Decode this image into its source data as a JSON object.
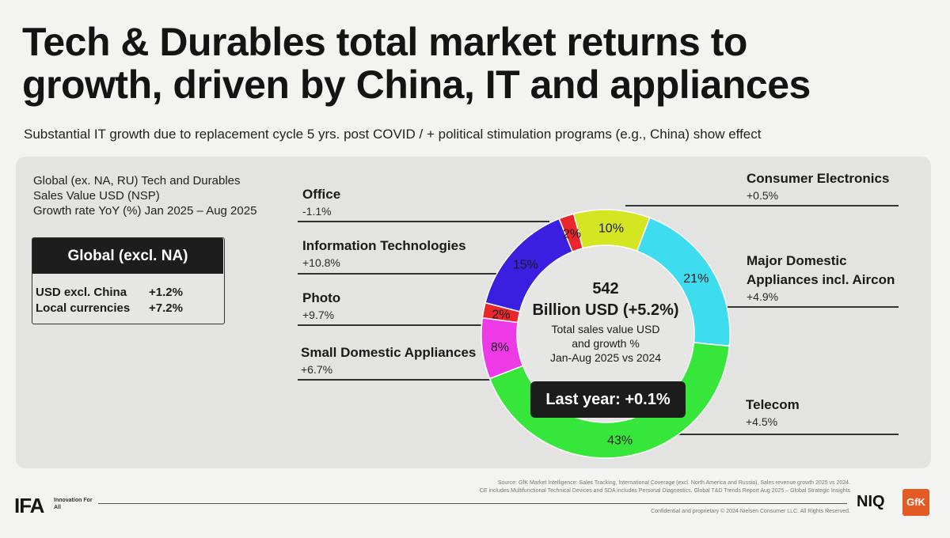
{
  "title_line1": "Tech & Durables total market returns to",
  "title_line2": "growth, driven by China, IT and appliances",
  "subtitle": "Substantial IT growth due to replacement cycle 5 yrs. post COVID / + political stimulation programs (e.g., China) show effect",
  "description": [
    "Global (ex. NA, RU) Tech and Durables",
    "Sales Value USD (NSP)",
    "Growth rate YoY (%) Jan 2025 – Aug 2025"
  ],
  "global_box": {
    "header": "Global (excl. NA)",
    "rows": [
      {
        "label": "USD excl. China",
        "value": "+1.2%"
      },
      {
        "label": "Local currencies",
        "value": "+7.2%"
      }
    ]
  },
  "chart_data": {
    "type": "pie",
    "donut": true,
    "slices": [
      {
        "name": "Office",
        "share": 2,
        "share_label": "2%",
        "growth": "-1.1%",
        "color": "#e8262b"
      },
      {
        "name": "Consumer Electronics",
        "share": 10,
        "share_label": "10%",
        "growth": "+0.5%",
        "color": "#d4e621"
      },
      {
        "name": "Major Domestic Appliances incl. Aircon",
        "share": 21,
        "share_label": "21%",
        "growth": "+4.9%",
        "color": "#3ddcef"
      },
      {
        "name": "Telecom",
        "share": 43,
        "share_label": "43%",
        "growth": "+4.5%",
        "color": "#37e63a"
      },
      {
        "name": "Small Domestic Appliances",
        "share": 8,
        "share_label": "8%",
        "growth": "+6.7%",
        "color": "#ee3ae6"
      },
      {
        "name": "Photo",
        "share": 2,
        "share_label": "2%",
        "growth": "+9.7%",
        "color": "#e8262b"
      },
      {
        "name": "Information Technologies",
        "share": 15,
        "share_label": "15%",
        "growth": "+10.8%",
        "color": "#3b1fe0"
      }
    ],
    "center": {
      "value": "542",
      "unit": "Billion USD (+5.2%)",
      "caption": [
        "Total sales value USD",
        "and growth %",
        "Jan-Aug 2025 vs 2024"
      ]
    },
    "last_year": "Last year: +0.1%"
  },
  "segment_labels": {
    "office": {
      "name": "Office",
      "value": "-1.1%"
    },
    "it": {
      "name": "Information Technologies",
      "value": "+10.8%"
    },
    "photo": {
      "name": "Photo",
      "value": "+9.7%"
    },
    "sda": {
      "name": "Small Domestic Appliances",
      "value": "+6.7%"
    },
    "ce": {
      "name": "Consumer Electronics",
      "value": "+0.5%"
    },
    "mda": {
      "name_line1": "Major Domestic",
      "name_line2": "Appliances incl. Aircon",
      "value": "+4.9%"
    },
    "telecom": {
      "name": "Telecom",
      "value": "+4.5%"
    }
  },
  "footer": {
    "source_line1": "Source: GfK Market Intelligence: Sales Tracking, International Coverage (excl. North America and Russia), Sales revenue growth 2025 vs 2024.",
    "source_line2": "CE includes Multifunctional Technical Devices and SDA includes Personal Diagnostics. Global T&D Trends Report Aug 2025 – Global Strategic Insights",
    "confidential": "Confidential and proprietary © 2024 Nielsen Consumer LLC. All Rights Reserved.",
    "ifa_logo": "IFA",
    "ifa_tagline": "Innovation For All",
    "niq_logo": "NIQ",
    "gfk_logo": "GfK"
  }
}
